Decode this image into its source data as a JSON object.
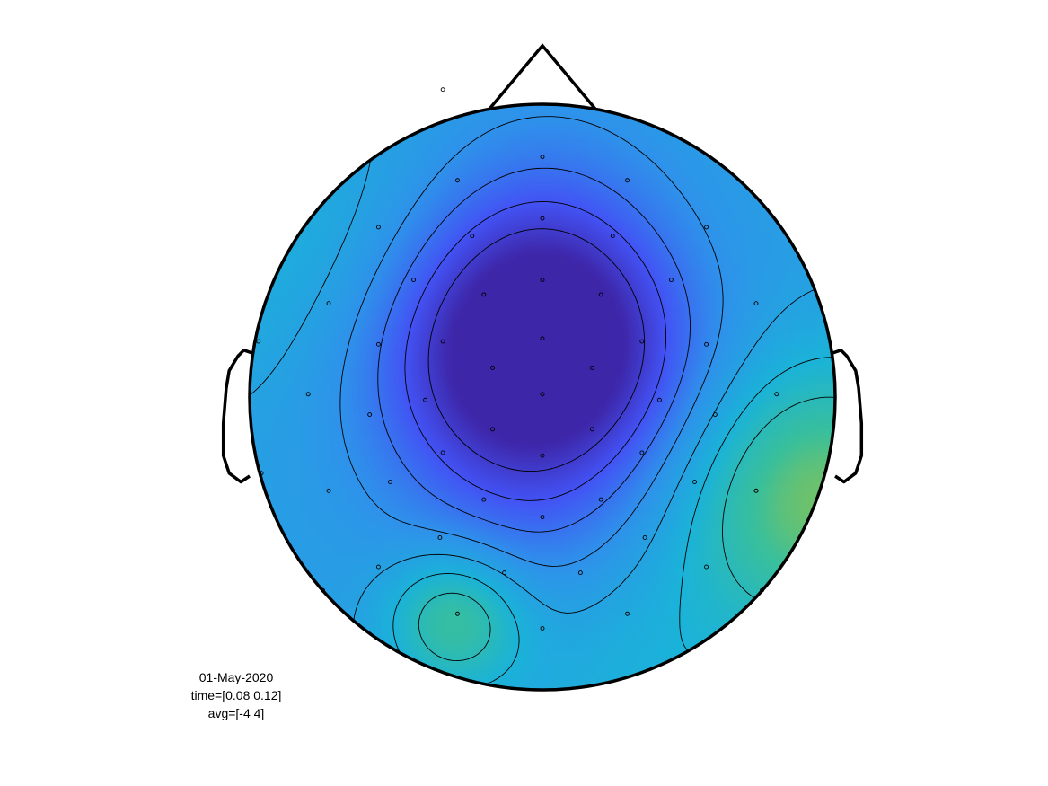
{
  "annotation": {
    "date": "01-May-2020",
    "time_window": "time=[0.08 0.12]",
    "average": "avg=[-4 4]"
  },
  "chart_data": {
    "type": "heatmap",
    "title": "",
    "colormap": [
      "#3e26a8",
      "#4353f5",
      "#2f92eb",
      "#1bb3d9",
      "#3ac09b",
      "#a6c33b"
    ],
    "clim": [
      -4,
      4
    ],
    "head": {
      "nose_tip": [
        0,
        1.2
      ],
      "left_ear": [
        [
          -0.99,
          0.15
        ],
        [
          -1.02,
          0.16
        ],
        [
          -1.04,
          0.14
        ],
        [
          -1.07,
          0.09
        ],
        [
          -1.08,
          0.03
        ],
        [
          -1.09,
          -0.09
        ],
        [
          -1.09,
          -0.2
        ],
        [
          -1.07,
          -0.26
        ],
        [
          -1.03,
          -0.29
        ],
        [
          -1.0,
          -0.27
        ]
      ],
      "right_ear": [
        [
          0.99,
          0.15
        ],
        [
          1.02,
          0.16
        ],
        [
          1.04,
          0.14
        ],
        [
          1.07,
          0.09
        ],
        [
          1.08,
          0.03
        ],
        [
          1.09,
          -0.09
        ],
        [
          1.09,
          -0.2
        ],
        [
          1.07,
          -0.26
        ],
        [
          1.03,
          -0.29
        ],
        [
          1.0,
          -0.27
        ]
      ]
    },
    "field_sources": [
      {
        "x": 0.0,
        "y": 0.22,
        "amp": -3.6,
        "sigma": 0.3
      },
      {
        "x": -0.25,
        "y": 0.05,
        "amp": -1.6,
        "sigma": 0.32
      },
      {
        "x": 0.25,
        "y": 0.05,
        "amp": -1.0,
        "sigma": 0.3
      },
      {
        "x": 0.0,
        "y": -0.4,
        "amp": -1.0,
        "sigma": 0.3
      },
      {
        "x": 0.0,
        "y": 0.62,
        "amp": -0.8,
        "sigma": 0.3
      },
      {
        "x": 0.95,
        "y": -0.35,
        "amp": 3.4,
        "sigma": 0.32
      },
      {
        "x": -0.3,
        "y": -0.76,
        "amp": 2.6,
        "sigma": 0.16
      },
      {
        "x": 0.3,
        "y": -0.95,
        "amp": 0.9,
        "sigma": 0.35
      },
      {
        "x": -0.95,
        "y": 0.55,
        "amp": 0.8,
        "sigma": 0.4
      }
    ],
    "field_baseline": -0.2,
    "contour_levels": [
      -3.2,
      -2.4,
      -1.6,
      -0.8,
      0.0,
      0.8,
      1.6
    ],
    "electrodes": [
      [
        -0.34,
        1.05
      ],
      [
        0.0,
        0.82
      ],
      [
        -0.29,
        0.74
      ],
      [
        0.29,
        0.74
      ],
      [
        -0.56,
        0.58
      ],
      [
        -0.24,
        0.55
      ],
      [
        0.0,
        0.61
      ],
      [
        0.24,
        0.55
      ],
      [
        0.56,
        0.58
      ],
      [
        -0.73,
        0.32
      ],
      [
        -0.44,
        0.4
      ],
      [
        -0.2,
        0.35
      ],
      [
        0.0,
        0.4
      ],
      [
        0.2,
        0.35
      ],
      [
        0.44,
        0.4
      ],
      [
        0.73,
        0.32
      ],
      [
        -0.97,
        0.19
      ],
      [
        -0.56,
        0.18
      ],
      [
        -0.34,
        0.19
      ],
      [
        0.0,
        0.2
      ],
      [
        0.34,
        0.19
      ],
      [
        0.56,
        0.18
      ],
      [
        -0.17,
        0.1
      ],
      [
        0.17,
        0.1
      ],
      [
        -0.8,
        0.01
      ],
      [
        -0.4,
        -0.01
      ],
      [
        0.0,
        0.01
      ],
      [
        0.4,
        -0.01
      ],
      [
        0.8,
        0.01
      ],
      [
        -0.59,
        -0.06
      ],
      [
        0.59,
        -0.06
      ],
      [
        -0.17,
        -0.11
      ],
      [
        0.17,
        -0.11
      ],
      [
        -0.34,
        -0.19
      ],
      [
        0.0,
        -0.2
      ],
      [
        0.34,
        -0.19
      ],
      [
        -0.96,
        -0.26
      ],
      [
        -0.73,
        -0.32
      ],
      [
        -0.52,
        -0.29
      ],
      [
        0.52,
        -0.29
      ],
      [
        0.73,
        -0.32
      ],
      [
        0.73,
        -0.32
      ],
      [
        -0.2,
        -0.35
      ],
      [
        0.2,
        -0.35
      ],
      [
        0.0,
        -0.41
      ],
      [
        -0.35,
        -0.48
      ],
      [
        0.35,
        -0.48
      ],
      [
        -0.56,
        -0.58
      ],
      [
        -0.13,
        -0.6
      ],
      [
        0.13,
        -0.6
      ],
      [
        0.56,
        -0.58
      ],
      [
        -0.75,
        -0.66
      ],
      [
        -0.29,
        -0.74
      ],
      [
        0.29,
        -0.74
      ],
      [
        0.75,
        -0.66
      ],
      [
        0.0,
        -0.79
      ]
    ]
  }
}
